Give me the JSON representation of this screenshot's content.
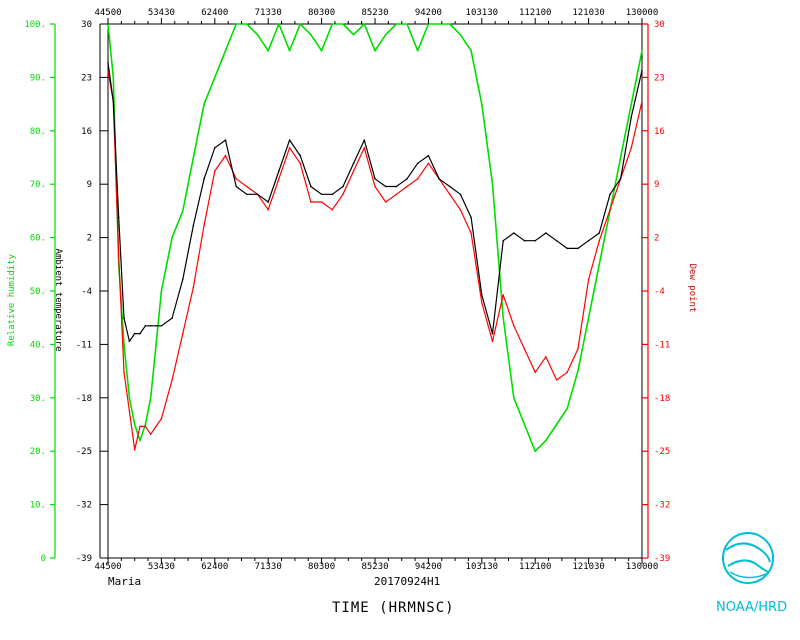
{
  "chart_data": {
    "type": "line",
    "storm_name": "Maria",
    "flight_id": "20170924H1",
    "xlabel": "TIME (HRMNSC)",
    "agency": "NOAA/HRD",
    "x_ticks": [
      "44500",
      "53430",
      "62400",
      "71330",
      "80300",
      "85230",
      "94200",
      "103130",
      "112100",
      "121030",
      "130000"
    ],
    "x_range": [
      "44500",
      "130000"
    ],
    "y_axes": {
      "rh": {
        "label": "Relative humidity",
        "ticks": [
          "0",
          "10.",
          "20.",
          "30.",
          "40.",
          "50.",
          "60.",
          "70.",
          "80.",
          "90.",
          "100."
        ],
        "range": [
          0,
          100
        ],
        "color": "#00dd00"
      },
      "temp": {
        "label": "Ambient temperature",
        "ticks": [
          "-39",
          "-32",
          "-25",
          "-18",
          "-11",
          "-4",
          "2",
          "9",
          "16",
          "23",
          "30"
        ],
        "range": [
          -39,
          30
        ],
        "color": "#000000"
      },
      "dew": {
        "label": "Dew point",
        "ticks": [
          "-39",
          "-32",
          "-25",
          "-18",
          "-11",
          "-4",
          "2",
          "9",
          "16",
          "23",
          "30"
        ],
        "range": [
          -39,
          30
        ],
        "color": "#ff0000"
      }
    },
    "x_positions": [
      0,
      0.01,
      0.02,
      0.03,
      0.04,
      0.05,
      0.06,
      0.07,
      0.08,
      0.09,
      0.1,
      0.12,
      0.14,
      0.16,
      0.18,
      0.2,
      0.22,
      0.24,
      0.26,
      0.28,
      0.3,
      0.32,
      0.34,
      0.36,
      0.38,
      0.4,
      0.42,
      0.44,
      0.46,
      0.48,
      0.5,
      0.52,
      0.54,
      0.56,
      0.58,
      0.6,
      0.62,
      0.64,
      0.66,
      0.68,
      0.7,
      0.72,
      0.74,
      0.76,
      0.78,
      0.8,
      0.82,
      0.84,
      0.86,
      0.88,
      0.9,
      0.92,
      0.94,
      0.96,
      0.98,
      1.0
    ],
    "series": [
      {
        "name": "Ambient temperature",
        "color": "#000000",
        "values": [
          25,
          20,
          5,
          -8,
          -11,
          -10,
          -10,
          -9,
          -9,
          -9,
          -9,
          -8,
          -3,
          4,
          10,
          14,
          15,
          9,
          8,
          8,
          7,
          11,
          15,
          13,
          9,
          8,
          8,
          9,
          12,
          15,
          10,
          9,
          9,
          10,
          12,
          13,
          10,
          9,
          8,
          5,
          -5,
          -10,
          2,
          3,
          2,
          2,
          3,
          2,
          1,
          1,
          2,
          3,
          8,
          10,
          18,
          24
        ]
      },
      {
        "name": "Dew point",
        "color": "#ff0000",
        "values": [
          24,
          20,
          0,
          -15,
          -20,
          -25,
          -22,
          -22,
          -23,
          -22,
          -21,
          -16,
          -10,
          -4,
          4,
          11,
          13,
          10,
          9,
          8,
          6,
          10,
          14,
          12,
          7,
          7,
          6,
          8,
          11,
          14,
          9,
          7,
          8,
          9,
          10,
          12,
          10,
          8,
          6,
          3,
          -6,
          -11,
          -5,
          -9,
          -12,
          -15,
          -13,
          -16,
          -15,
          -12,
          -3,
          2,
          6,
          10,
          14,
          20
        ]
      },
      {
        "name": "Relative humidity",
        "color": "#00dd00",
        "values": [
          100,
          90,
          55,
          40,
          30,
          25,
          22,
          25,
          30,
          40,
          50,
          60,
          65,
          75,
          85,
          90,
          95,
          100,
          100,
          98,
          95,
          100,
          95,
          100,
          98,
          95,
          100,
          100,
          98,
          100,
          95,
          98,
          100,
          100,
          95,
          100,
          100,
          100,
          98,
          95,
          85,
          70,
          45,
          30,
          25,
          20,
          22,
          25,
          28,
          35,
          45,
          55,
          65,
          75,
          85,
          95
        ]
      }
    ]
  }
}
